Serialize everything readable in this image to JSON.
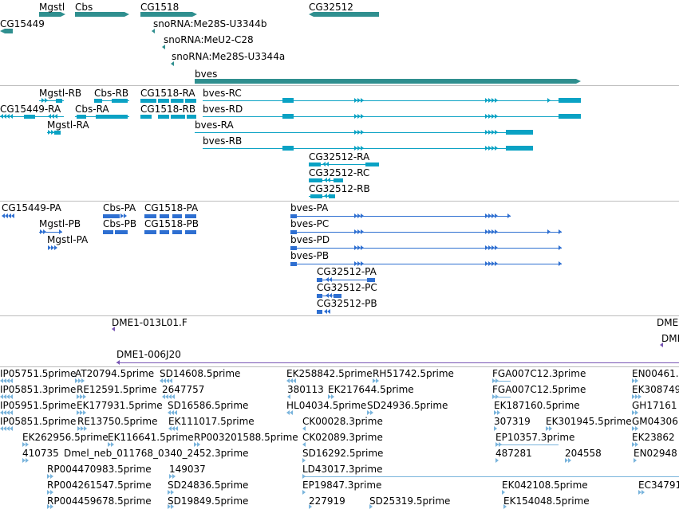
{
  "colors": {
    "gene": "#2f8f8f",
    "transcript_dark": "#0aa2c4",
    "protein": "#2e6fd1",
    "clone": "#7855b4",
    "est": "#79b4dc",
    "divider": "#bdbdbd"
  },
  "tracks": {
    "genes": {
      "labels": [
        "Mgstl",
        "Cbs",
        "CG1518",
        "CG32512",
        "CG15449",
        "snoRNA:Me28S-U3344b",
        "snoRNA:MeU2-C28",
        "snoRNA:Me28S-U3344a",
        "bves"
      ]
    },
    "transcripts": {
      "labels": [
        "Mgstl-RB",
        "Cbs-RB",
        "CG1518-RA",
        "bves-RC",
        "CG15449-RA",
        "Cbs-RA",
        "CG1518-RB",
        "bves-RD",
        "Mgstl-RA",
        "bves-RA",
        "bves-RB",
        "CG32512-RA",
        "CG32512-RC",
        "CG32512-RB"
      ]
    },
    "proteins": {
      "labels": [
        "CG15449-PA",
        "Cbs-PA",
        "CG1518-PA",
        "bves-PA",
        "Mgstl-PB",
        "Cbs-PB",
        "CG1518-PB",
        "bves-PC",
        "Mgstl-PA",
        "bves-PD",
        "bves-PB",
        "CG32512-PA",
        "CG32512-PC",
        "CG32512-PB"
      ]
    },
    "clones": {
      "labels": [
        "DME1-013L01.F",
        "DME1-006J20",
        "DME",
        "DME"
      ]
    },
    "ests": {
      "labels": [
        "IP05751.5prime",
        "AT20794.5prime",
        "SD14608.5prime",
        "EK258842.5prime",
        "RH51742.5prime",
        "FGA007C12.3prime",
        "EN00461.",
        "IP05851.3prime",
        "RE12591.5prime",
        "2647757",
        "380113",
        "EK217644.5prime",
        "FGA007C12.5prime",
        "EK308749",
        "IP05951.5prime",
        "EK177931.5prime",
        "SD16586.5prime",
        "HL04034.5prime",
        "SD24936.5prime",
        "EK187160.5prime",
        "GH17161",
        "IP05851.5prime",
        "RE13750.5prime",
        "EK111017.5prime",
        "CK00028.3prime",
        "307319",
        "EK301945.5prime",
        "GM04306",
        "EK262956.5prime",
        "EK116641.5prime",
        "RP003201588.5prime",
        "CK02089.3prime",
        "EP10357.3prime",
        "EK23862",
        "410735",
        "Dmel_neb_011768_0340_2452.3prime",
        "SD16292.5prime",
        "487281",
        "204558",
        "EN02948",
        "RP004470983.5prime",
        "149037",
        "LD43017.3prime",
        "RP004261547.5prime",
        "SD24836.5prime",
        "EP19847.3prime",
        "EK042108.5prime",
        "EC34791",
        "RP004459678.5prime",
        "SD19849.5prime",
        "227919",
        "SD25319.5prime",
        "EK154048.5prime"
      ]
    }
  }
}
